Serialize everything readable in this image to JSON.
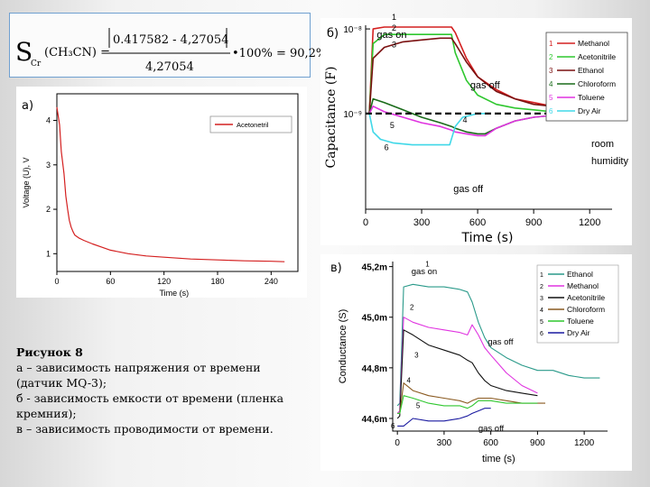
{
  "formula": {
    "symbol": "S",
    "sub": "Cr",
    "arg": "(CH₃CN) =",
    "numerator": "0.417582 - 4,27054",
    "denominator": "4,27054",
    "result": "•100% = 90,2%"
  },
  "labels": {
    "a": "а)",
    "b": "б)",
    "v": "в)"
  },
  "caption": {
    "title": "Рисунок 8",
    "lines": [
      "а – зависимость напряжения от времени",
      "(датчик MQ-3);",
      "б - зависимость емкости от времени (пленка",
      "кремния);",
      "в – зависимость проводимости от времени."
    ]
  },
  "colors": {
    "red": "#d42020",
    "green": "#2fc72f",
    "darkred": "#7a1010",
    "darkgreen": "#1a6b1a",
    "magenta": "#e033e0",
    "cyan": "#40d8e8",
    "teal": "#2a9a8a",
    "black": "#000000",
    "blue": "#1a1aa0",
    "brown": "#8a5a20"
  },
  "chart_data": [
    {
      "id": "a",
      "type": "line",
      "xlabel": "Time (s)",
      "ylabel": "Voltage (U), V",
      "xticks": [
        "0",
        "60",
        "120",
        "180",
        "240"
      ],
      "yticks": [
        "1",
        "2",
        "3",
        "4"
      ],
      "xlim": [
        0,
        270
      ],
      "ylim": [
        0.6,
        4.6
      ],
      "legend": [
        "Acetonetril"
      ],
      "legend_position": "top-right",
      "series": [
        {
          "name": "Acetonetril",
          "color": "#d42020",
          "x": [
            0,
            3,
            5,
            8,
            10,
            12,
            14,
            16,
            18,
            20,
            25,
            30,
            40,
            50,
            60,
            80,
            100,
            120,
            150,
            180,
            210,
            240,
            255
          ],
          "y": [
            4.3,
            3.9,
            3.3,
            2.8,
            2.3,
            2.0,
            1.75,
            1.6,
            1.5,
            1.42,
            1.35,
            1.3,
            1.22,
            1.15,
            1.08,
            1.0,
            0.95,
            0.92,
            0.88,
            0.86,
            0.84,
            0.83,
            0.82
          ]
        }
      ]
    },
    {
      "id": "b",
      "type": "line",
      "xlabel": "Time (s)",
      "ylabel": "Capacitance (F)",
      "xticks": [
        "0",
        "300",
        "600",
        "900",
        "1200"
      ],
      "yticks": [
        "10⁻⁹",
        "10⁻⁸"
      ],
      "xlim": [
        0,
        1320
      ],
      "ylim": [
        0,
        1
      ],
      "annotations": [
        "gas on",
        "gas off",
        "gas off",
        "room humidity"
      ],
      "legend": [
        "Methanol",
        "Acetonitrile",
        "Ethanol",
        "Chloroform",
        "Toluene",
        "Dry Air"
      ],
      "legend_numbers": [
        "1",
        "2",
        "3",
        "4",
        "5",
        "6"
      ],
      "legend_position": "top-right",
      "series": [
        {
          "name": "Methanol",
          "color": "#d42020",
          "x": [
            0,
            20,
            40,
            100,
            200,
            300,
            400,
            460,
            480,
            540,
            600,
            700,
            800,
            900,
            1000,
            1100,
            1200,
            1280
          ],
          "y": [
            0.52,
            0.52,
            0.98,
            0.99,
            0.99,
            0.99,
            0.99,
            0.99,
            0.96,
            0.82,
            0.72,
            0.65,
            0.6,
            0.58,
            0.56,
            0.55,
            0.55,
            0.55
          ]
        },
        {
          "name": "Acetonitrile",
          "color": "#2fc72f",
          "x": [
            0,
            20,
            40,
            100,
            200,
            300,
            400,
            460,
            480,
            540,
            600,
            700,
            800,
            900,
            1000,
            1100,
            1200,
            1280
          ],
          "y": [
            0.52,
            0.52,
            0.9,
            0.95,
            0.95,
            0.95,
            0.95,
            0.95,
            0.85,
            0.7,
            0.62,
            0.57,
            0.55,
            0.54,
            0.53,
            0.53,
            0.53,
            0.53
          ]
        },
        {
          "name": "Ethanol",
          "color": "#7a1010",
          "x": [
            0,
            20,
            40,
            100,
            200,
            300,
            400,
            460,
            480,
            540,
            600,
            700,
            800,
            900,
            1000,
            1100,
            1200,
            1280
          ],
          "y": [
            0.52,
            0.52,
            0.82,
            0.88,
            0.91,
            0.92,
            0.93,
            0.93,
            0.9,
            0.8,
            0.72,
            0.64,
            0.6,
            0.57,
            0.56,
            0.55,
            0.55,
            0.55
          ]
        },
        {
          "name": "Chloroform",
          "color": "#1a6b1a",
          "x": [
            0,
            20,
            40,
            100,
            200,
            300,
            400,
            460,
            480,
            540,
            600,
            640,
            700,
            800,
            900,
            1000,
            1100,
            1200,
            1280
          ],
          "y": [
            0.52,
            0.52,
            0.6,
            0.58,
            0.54,
            0.5,
            0.47,
            0.45,
            0.44,
            0.42,
            0.41,
            0.41,
            0.44,
            0.48,
            0.5,
            0.51,
            0.52,
            0.52,
            0.52
          ]
        },
        {
          "name": "Toluene",
          "color": "#e033e0",
          "x": [
            0,
            20,
            40,
            100,
            200,
            300,
            400,
            460,
            480,
            540,
            600,
            640,
            700,
            800,
            900,
            1000,
            1100,
            1200,
            1280
          ],
          "y": [
            0.52,
            0.52,
            0.56,
            0.53,
            0.5,
            0.47,
            0.45,
            0.43,
            0.42,
            0.41,
            0.4,
            0.4,
            0.44,
            0.48,
            0.5,
            0.51,
            0.52,
            0.52,
            0.52
          ]
        },
        {
          "name": "Dry Air",
          "color": "#40d8e8",
          "x": [
            0,
            20,
            40,
            80,
            150,
            250,
            350,
            450,
            480,
            520,
            560,
            600,
            640
          ],
          "y": [
            0.52,
            0.52,
            0.42,
            0.38,
            0.36,
            0.35,
            0.35,
            0.35,
            0.45,
            0.5,
            0.51,
            0.52,
            0.52
          ]
        },
        {
          "name": "room humidity",
          "color": "#000000",
          "dashed": true,
          "x": [
            0,
            1220
          ],
          "y": [
            0.52,
            0.52
          ]
        }
      ]
    },
    {
      "id": "v",
      "type": "line",
      "xlabel": "time (s)",
      "ylabel": "Conductance (S)",
      "xticks": [
        "0",
        "300",
        "600",
        "900",
        "1200"
      ],
      "yticks": [
        "44,6m",
        "44,8m",
        "45,0m",
        "45,2m"
      ],
      "xlim": [
        -30,
        1350
      ],
      "ylim": [
        44.55,
        45.22
      ],
      "annotations": [
        "gas on",
        "gas off",
        "gas off"
      ],
      "legend": [
        "Ethanol",
        "Methanol",
        "Acetonitrile",
        "Chloroform",
        "Toluene",
        "Dry Air"
      ],
      "legend_numbers": [
        "1",
        "2",
        "3",
        "4",
        "5",
        "6"
      ],
      "legend_position": "top-right",
      "series": [
        {
          "name": "Ethanol",
          "color": "#2a9a8a",
          "x": [
            0,
            15,
            40,
            100,
            200,
            300,
            400,
            450,
            480,
            520,
            560,
            600,
            700,
            800,
            900,
            1000,
            1100,
            1200,
            1300
          ],
          "y": [
            44.65,
            44.66,
            45.12,
            45.13,
            45.12,
            45.12,
            45.11,
            45.1,
            45.06,
            44.98,
            44.92,
            44.88,
            44.84,
            44.81,
            44.79,
            44.79,
            44.77,
            44.76,
            44.76
          ]
        },
        {
          "name": "Methanol",
          "color": "#e033e0",
          "x": [
            0,
            15,
            40,
            100,
            200,
            300,
            400,
            450,
            480,
            520,
            560,
            600,
            700,
            800,
            900
          ],
          "y": [
            44.62,
            44.63,
            45.0,
            44.98,
            44.96,
            44.95,
            44.94,
            44.93,
            44.97,
            44.93,
            44.88,
            44.85,
            44.78,
            44.73,
            44.7
          ]
        },
        {
          "name": "Acetonitrile",
          "color": "#111111",
          "x": [
            0,
            15,
            40,
            100,
            200,
            300,
            400,
            450,
            480,
            520,
            560,
            600,
            700,
            800,
            900
          ],
          "y": [
            44.6,
            44.61,
            44.95,
            44.93,
            44.89,
            44.87,
            44.85,
            44.83,
            44.82,
            44.78,
            44.75,
            44.73,
            44.71,
            44.7,
            44.69
          ]
        },
        {
          "name": "Chloroform",
          "color": "#8a5a20",
          "x": [
            0,
            15,
            40,
            100,
            200,
            300,
            400,
            450,
            480,
            520,
            560,
            600,
            700,
            800,
            900,
            950
          ],
          "y": [
            44.62,
            44.62,
            44.74,
            44.71,
            44.69,
            44.68,
            44.67,
            44.66,
            44.67,
            44.68,
            44.68,
            44.68,
            44.67,
            44.66,
            44.66,
            44.66
          ]
        },
        {
          "name": "Toluene",
          "color": "#2fc72f",
          "x": [
            0,
            15,
            40,
            100,
            200,
            300,
            400,
            450,
            480,
            520,
            560,
            600,
            700,
            800,
            900
          ],
          "y": [
            44.62,
            44.62,
            44.69,
            44.68,
            44.66,
            44.65,
            44.65,
            44.64,
            44.65,
            44.67,
            44.67,
            44.67,
            44.66,
            44.66,
            44.66
          ]
        },
        {
          "name": "Dry Air",
          "color": "#1a1aa0",
          "x": [
            0,
            40,
            100,
            200,
            300,
            400,
            450,
            480,
            520,
            560,
            600
          ],
          "y": [
            44.57,
            44.57,
            44.6,
            44.59,
            44.59,
            44.6,
            44.61,
            44.62,
            44.63,
            44.64,
            44.64
          ]
        }
      ]
    }
  ]
}
